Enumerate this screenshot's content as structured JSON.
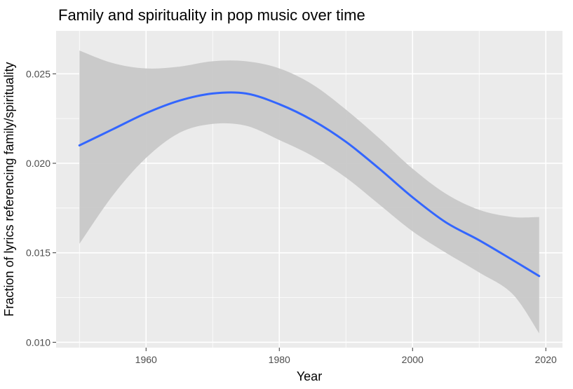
{
  "chart_data": {
    "type": "line",
    "title": "Family and spirituality in pop music over time",
    "xlabel": "Year",
    "ylabel": "Fraction of lyrics referencing family/spirituality",
    "xlim": [
      1946.5,
      2022.5
    ],
    "ylim": [
      0.0097,
      0.0274
    ],
    "x_ticks": [
      1960,
      1980,
      2000,
      2020
    ],
    "y_ticks": [
      0.01,
      0.015,
      0.02,
      0.025
    ],
    "y_tick_labels": [
      "0.010",
      "0.015",
      "0.020",
      "0.025"
    ],
    "grid": true,
    "legend": "none",
    "colors": {
      "panel": "#ebebeb",
      "grid": "#ffffff",
      "line": "#3366ff",
      "ribbon": "#c8c8c8"
    },
    "series": [
      {
        "x": [
          1950,
          1955,
          1960,
          1965,
          1970,
          1975,
          1980,
          1985,
          1990,
          1995,
          2000,
          2005,
          2010,
          2015,
          2019
        ],
        "y": [
          0.021,
          0.0219,
          0.0228,
          0.0235,
          0.0239,
          0.0239,
          0.0233,
          0.0224,
          0.0212,
          0.0197,
          0.0181,
          0.0167,
          0.0157,
          0.0146,
          0.0137
        ],
        "lower": [
          0.0155,
          0.0182,
          0.0203,
          0.0217,
          0.0222,
          0.0221,
          0.0213,
          0.0204,
          0.0192,
          0.0177,
          0.0162,
          0.015,
          0.0139,
          0.0127,
          0.0105
        ],
        "upper": [
          0.0263,
          0.0256,
          0.0253,
          0.0254,
          0.0257,
          0.0257,
          0.0253,
          0.0244,
          0.023,
          0.0214,
          0.0197,
          0.0183,
          0.0174,
          0.017,
          0.017
        ]
      }
    ]
  }
}
